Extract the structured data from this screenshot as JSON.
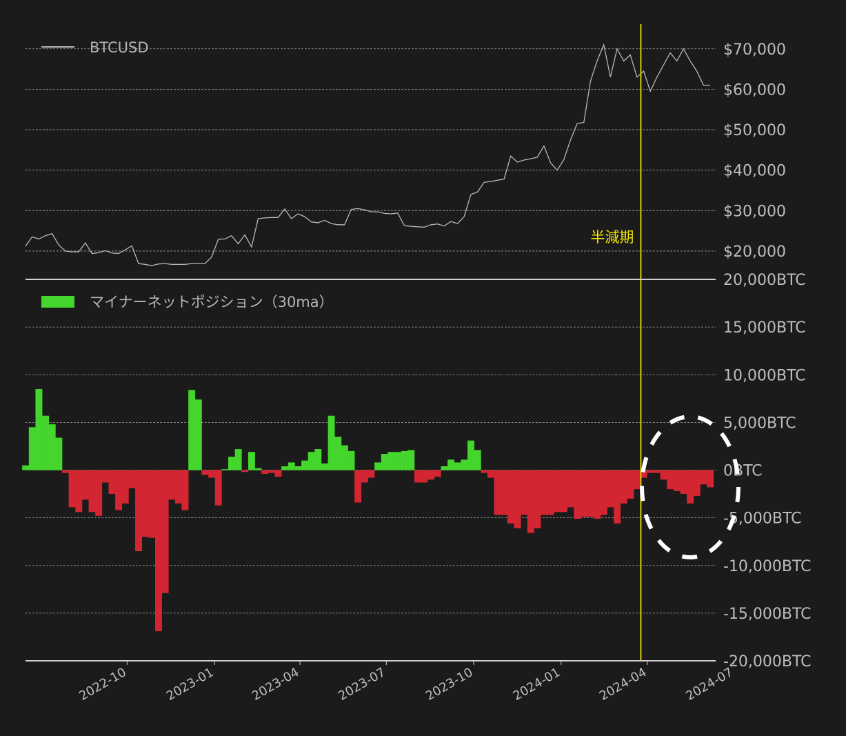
{
  "colors": {
    "background": "#1b1b1b",
    "price_line": "#b8b8b8",
    "positive": "#44d62c",
    "negative": "#d42632",
    "halving_line": "#d9cc00",
    "halving_text": "#f2e600",
    "annotation_circle": "#ffffff",
    "text": "#bdbdbd"
  },
  "chart_data": [
    {
      "type": "line",
      "legend": {
        "label": "BTCUSD",
        "placement": "top-left"
      },
      "ylim": [
        13000,
        76100
      ],
      "yticks": [
        20000,
        30000,
        40000,
        50000,
        60000,
        70000
      ],
      "ytick_labels": [
        "$20,000",
        "$30,000",
        "$40,000",
        "$50,000",
        "$60,000",
        "$70,000"
      ],
      "grid": true,
      "annotation": {
        "text": "半減期",
        "date": "2024-03-25"
      },
      "series": [
        {
          "name": "BTCUSD",
          "values": [
            21200,
            23500,
            23000,
            23800,
            24300,
            21500,
            20000,
            19800,
            19800,
            22000,
            19400,
            19600,
            20100,
            19500,
            19400,
            20300,
            21300,
            16900,
            16700,
            16400,
            16800,
            16900,
            16700,
            16700,
            16700,
            16900,
            17000,
            16900,
            18500,
            22900,
            23000,
            23800,
            21800,
            24000,
            21000,
            28000,
            28200,
            28300,
            28300,
            30400,
            28000,
            29200,
            28500,
            27200,
            27000,
            27600,
            26800,
            26500,
            26500,
            30300,
            30500,
            30200,
            29700,
            29700,
            29300,
            29200,
            29400,
            26300,
            26100,
            26000,
            25900,
            26500,
            26700,
            26200,
            27300,
            26800,
            28500,
            34000,
            34600,
            37000,
            37200,
            37500,
            37800,
            43500,
            42000,
            42500,
            42800,
            43200,
            46000,
            41800,
            40000,
            42600,
            47500,
            51500,
            51800,
            62000,
            67000,
            71000,
            63000,
            70000,
            67000,
            68500,
            63000,
            64500,
            59500,
            63000,
            66000,
            69000,
            67000,
            70000,
            67000,
            64500,
            61000,
            61000
          ]
        }
      ]
    },
    {
      "type": "bar",
      "legend": {
        "label": "マイナーネットポジション（30ma）",
        "placement": "top-left"
      },
      "ylim": [
        -20000,
        20000
      ],
      "yticks": [
        20000,
        15000,
        10000,
        5000,
        0,
        -5000,
        -10000,
        -15000,
        -20000
      ],
      "ytick_labels": [
        "20,000BTC",
        "15,000BTC",
        "10,000BTC",
        "5,000BTC",
        "0BTC",
        "-5,000BTC",
        "-10,000BTC",
        "-15,000BTC",
        "-20,000BTC"
      ],
      "grid": true,
      "series": [
        {
          "name": "マイナーネットポジション（30ma）",
          "values": [
            500,
            4500,
            8500,
            5700,
            4800,
            3400,
            -300,
            -3900,
            -4400,
            -3100,
            -4400,
            -4800,
            -1300,
            -2500,
            -4200,
            -3500,
            -1900,
            -8500,
            -7000,
            -7100,
            -16900,
            -12900,
            -3100,
            -3500,
            -4200,
            8400,
            7400,
            -500,
            -800,
            -3700,
            100,
            1400,
            2200,
            -200,
            1900,
            200,
            -400,
            -300,
            -700,
            400,
            800,
            400,
            1000,
            1900,
            2200,
            700,
            5700,
            3500,
            2600,
            2000,
            -3400,
            -1300,
            -800,
            800,
            1700,
            1900,
            1900,
            2000,
            2100,
            -1300,
            -1300,
            -1000,
            -700,
            400,
            1100,
            800,
            1100,
            3100,
            2100,
            -300,
            -800,
            -4700,
            -4700,
            -5600,
            -6100,
            -4700,
            -6600,
            -6100,
            -4700,
            -4700,
            -4400,
            -4400,
            -3900,
            -5100,
            -4900,
            -4900,
            -5100,
            -4700,
            -3900,
            -5600,
            -3500,
            -3000,
            -2000,
            -800,
            -300,
            -300,
            -1000,
            -2000,
            -2200,
            -2500,
            -3500,
            -2700,
            -1500,
            -1800
          ]
        }
      ]
    }
  ],
  "dates": [
    "2022-06-16",
    "2022-06-23",
    "2022-06-30",
    "2022-07-07",
    "2022-07-14",
    "2022-07-21",
    "2022-07-28",
    "2022-08-04",
    "2022-08-11",
    "2022-08-18",
    "2022-08-25",
    "2022-09-01",
    "2022-09-08",
    "2022-09-15",
    "2022-09-22",
    "2022-09-29",
    "2022-10-06",
    "2022-10-13",
    "2022-10-20",
    "2022-10-27",
    "2022-11-03",
    "2022-11-10",
    "2022-11-17",
    "2022-11-24",
    "2022-12-01",
    "2022-12-08",
    "2022-12-15",
    "2022-12-22",
    "2022-12-29",
    "2023-01-05",
    "2023-01-12",
    "2023-01-19",
    "2023-01-26",
    "2023-02-02",
    "2023-02-09",
    "2023-02-16",
    "2023-02-23",
    "2023-03-02",
    "2023-03-09",
    "2023-03-16",
    "2023-03-23",
    "2023-03-30",
    "2023-04-06",
    "2023-04-13",
    "2023-04-20",
    "2023-04-27",
    "2023-05-04",
    "2023-05-11",
    "2023-05-18",
    "2023-05-25",
    "2023-06-01",
    "2023-06-08",
    "2023-06-15",
    "2023-06-22",
    "2023-06-29",
    "2023-07-06",
    "2023-07-13",
    "2023-07-20",
    "2023-07-27",
    "2023-08-03",
    "2023-08-10",
    "2023-08-17",
    "2023-08-24",
    "2023-08-31",
    "2023-09-07",
    "2023-09-14",
    "2023-09-21",
    "2023-09-28",
    "2023-10-05",
    "2023-10-12",
    "2023-10-19",
    "2023-10-26",
    "2023-11-02",
    "2023-11-09",
    "2023-11-16",
    "2023-11-23",
    "2023-11-30",
    "2023-12-07",
    "2023-12-14",
    "2023-12-21",
    "2023-12-28",
    "2024-01-04",
    "2024-01-11",
    "2024-01-18",
    "2024-01-25",
    "2024-02-01",
    "2024-02-08",
    "2024-02-15",
    "2024-02-22",
    "2024-02-29",
    "2024-03-07",
    "2024-03-14",
    "2024-03-21",
    "2024-03-28",
    "2024-04-04",
    "2024-04-11",
    "2024-04-18",
    "2024-04-25",
    "2024-05-02",
    "2024-05-09",
    "2024-05-16",
    "2024-05-23",
    "2024-05-30",
    "2024-06-06"
  ],
  "x_axis": {
    "ticks": [
      "2022-10-01",
      "2023-01-01",
      "2023-04-01",
      "2023-07-01",
      "2023-10-01",
      "2024-01-01",
      "2024-04-01",
      "2024-07-01"
    ],
    "tick_labels": [
      "2022-10",
      "2023-01",
      "2023-04",
      "2023-07",
      "2023-10",
      "2024-01",
      "2024-04",
      "2024-07"
    ]
  }
}
